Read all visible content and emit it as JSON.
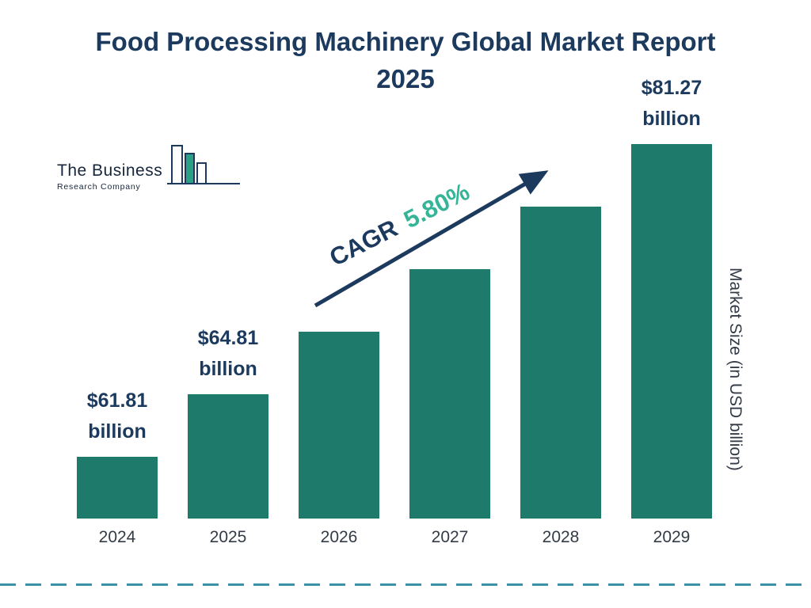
{
  "page": {
    "title": "Food Processing Machinery Global Market Report 2025"
  },
  "logo": {
    "line1": "The Business",
    "line2": "Research Company"
  },
  "chart_data": {
    "type": "bar",
    "title": "Food Processing Machinery Global Market Report 2025",
    "categories": [
      "2024",
      "2025",
      "2026",
      "2027",
      "2028",
      "2029"
    ],
    "values": [
      61.81,
      64.81,
      68.57,
      72.55,
      76.76,
      81.27
    ],
    "value_labels": [
      "$61.81 billion",
      "$64.81 billion",
      null,
      null,
      null,
      "$81.27 billion"
    ],
    "xlabel": "",
    "ylabel": "Market Size (in USD billion)",
    "unit": "USD billion",
    "cagr": {
      "label": "CAGR",
      "value": "5.80%"
    },
    "grid": false,
    "legend_position": "none",
    "colors": {
      "bar": "#1e7b6c",
      "accent_green": "#35b597",
      "navy": "#1c3a5e",
      "dashed_line": "#3a93a5",
      "year_label": "#333b46"
    }
  }
}
